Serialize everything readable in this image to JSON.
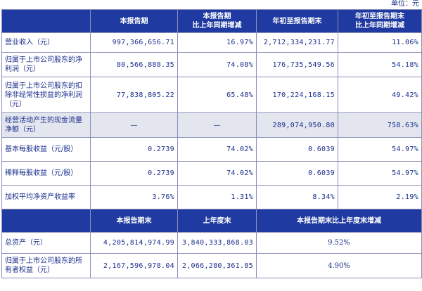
{
  "unit_label": "单位：元",
  "header1": {
    "col1": "本报告期",
    "col2": "本报告期\n比上年同期增减",
    "col3": "年初至报告期末",
    "col4": "年初至报告期末\n比上年同期增减"
  },
  "rows1": [
    {
      "label": "营业收入（元）",
      "v1": "997,366,656.71",
      "v2": "16.97%",
      "v3": "2,712,334,231.77",
      "v4": "11.06%"
    },
    {
      "label": "归属于上市公司股东的净利润（元）",
      "v1": "80,566,888.35",
      "v2": "74.08%",
      "v3": "176,735,549.56",
      "v4": "54.18%"
    },
    {
      "label": "归属于上市公司股东的扣除非经常性损益的净利润（元）",
      "v1": "77,838,805.22",
      "v2": "65.48%",
      "v3": "170,224,168.15",
      "v4": "49.42%"
    },
    {
      "label": "经营活动产生的现金流量净额（元）",
      "v1": "—",
      "v2": "—",
      "v3": "289,074,950.80",
      "v4": "758.63%"
    },
    {
      "label": "基本每股收益（元/股）",
      "v1": "0.2739",
      "v2": "74.02%",
      "v3": "0.6039",
      "v4": "54.97%"
    },
    {
      "label": "稀释每股收益（元/股）",
      "v1": "0.2739",
      "v2": "74.02%",
      "v3": "0.6039",
      "v4": "54.97%"
    },
    {
      "label": "加权平均净资产收益率",
      "v1": "3.76%",
      "v2": "1.31%",
      "v3": "8.34%",
      "v4": "2.19%"
    }
  ],
  "header2": {
    "col1": "本报告期末",
    "col2": "上年度末",
    "col3": "本报告期末比上年度末增减"
  },
  "rows2": [
    {
      "label": "总资产（元）",
      "v1": "4,205,814,974.99",
      "v2": "3,840,333,868.03",
      "v3": "9.52%"
    },
    {
      "label": "归属于上市公司股东的所有者权益（元）",
      "v1": "2,167,596,978.04",
      "v2": "2,066,280,361.85",
      "v3": "4.90%"
    }
  ]
}
